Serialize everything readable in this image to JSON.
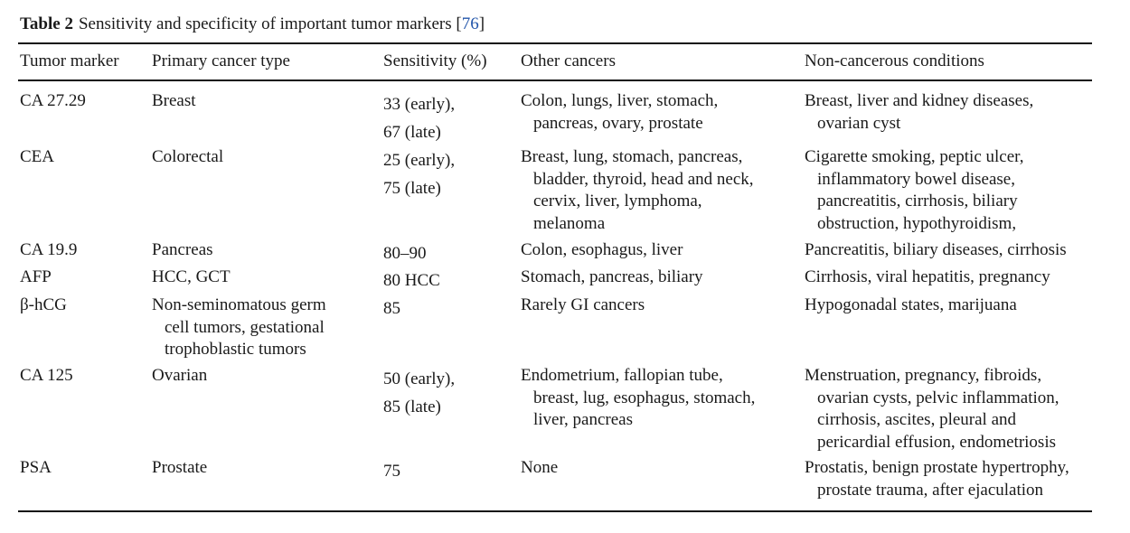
{
  "caption": {
    "label": "Table 2",
    "text": "Sensitivity and specificity of important tumor markers [",
    "ref": "76",
    "close": "]"
  },
  "headers": {
    "marker": "Tumor marker",
    "primary": "Primary cancer type",
    "sensitivity": "Sensitivity (%)",
    "other": "Other cancers",
    "noncancer": "Non-cancerous conditions"
  },
  "rows": [
    {
      "marker": "CA 27.29",
      "primary": [
        "Breast"
      ],
      "sensitivity": [
        "33 (early),",
        "67 (late)"
      ],
      "other": [
        "Colon, lungs, liver, stomach,",
        "pancreas, ovary, prostate"
      ],
      "noncancer": [
        "Breast, liver and kidney diseases,",
        "ovarian cyst"
      ]
    },
    {
      "marker": "CEA",
      "primary": [
        "Colorectal"
      ],
      "sensitivity": [
        "25 (early),",
        "75 (late)"
      ],
      "other": [
        "Breast, lung, stomach, pancreas,",
        "bladder, thyroid, head and neck,",
        "cervix, liver, lymphoma,",
        "melanoma"
      ],
      "noncancer": [
        "Cigarette smoking, peptic ulcer,",
        "inflammatory bowel disease,",
        "pancreatitis, cirrhosis, biliary",
        "obstruction, hypothyroidism,"
      ]
    },
    {
      "marker": "CA 19.9",
      "primary": [
        "Pancreas"
      ],
      "sensitivity": [
        "80–90"
      ],
      "other": [
        "Colon, esophagus, liver"
      ],
      "noncancer": [
        "Pancreatitis, biliary diseases, cirrhosis"
      ]
    },
    {
      "marker": "AFP",
      "primary": [
        "HCC, GCT"
      ],
      "sensitivity": [
        "80 HCC"
      ],
      "other": [
        "Stomach, pancreas, biliary"
      ],
      "noncancer": [
        "Cirrhosis, viral hepatitis, pregnancy"
      ]
    },
    {
      "marker": "β-hCG",
      "primary": [
        "Non-seminomatous germ",
        "cell tumors, gestational",
        "trophoblastic tumors"
      ],
      "sensitivity": [
        "85"
      ],
      "other": [
        "Rarely GI cancers"
      ],
      "noncancer": [
        "Hypogonadal states, marijuana"
      ]
    },
    {
      "marker": "CA 125",
      "primary": [
        "Ovarian"
      ],
      "sensitivity": [
        "50 (early),",
        "85 (late)"
      ],
      "other": [
        "Endometrium, fallopian tube,",
        "breast, lug, esophagus, stomach,",
        "liver, pancreas"
      ],
      "noncancer": [
        "Menstruation, pregnancy, fibroids,",
        "ovarian cysts, pelvic inflammation,",
        "cirrhosis, ascites, pleural and",
        "pericardial effusion, endometriosis"
      ]
    },
    {
      "marker": "PSA",
      "primary": [
        "Prostate"
      ],
      "sensitivity": [
        "75"
      ],
      "other": [
        "None"
      ],
      "noncancer": [
        "Prostatis, benign prostate hypertrophy,",
        "prostate trauma, after ejaculation"
      ]
    }
  ]
}
